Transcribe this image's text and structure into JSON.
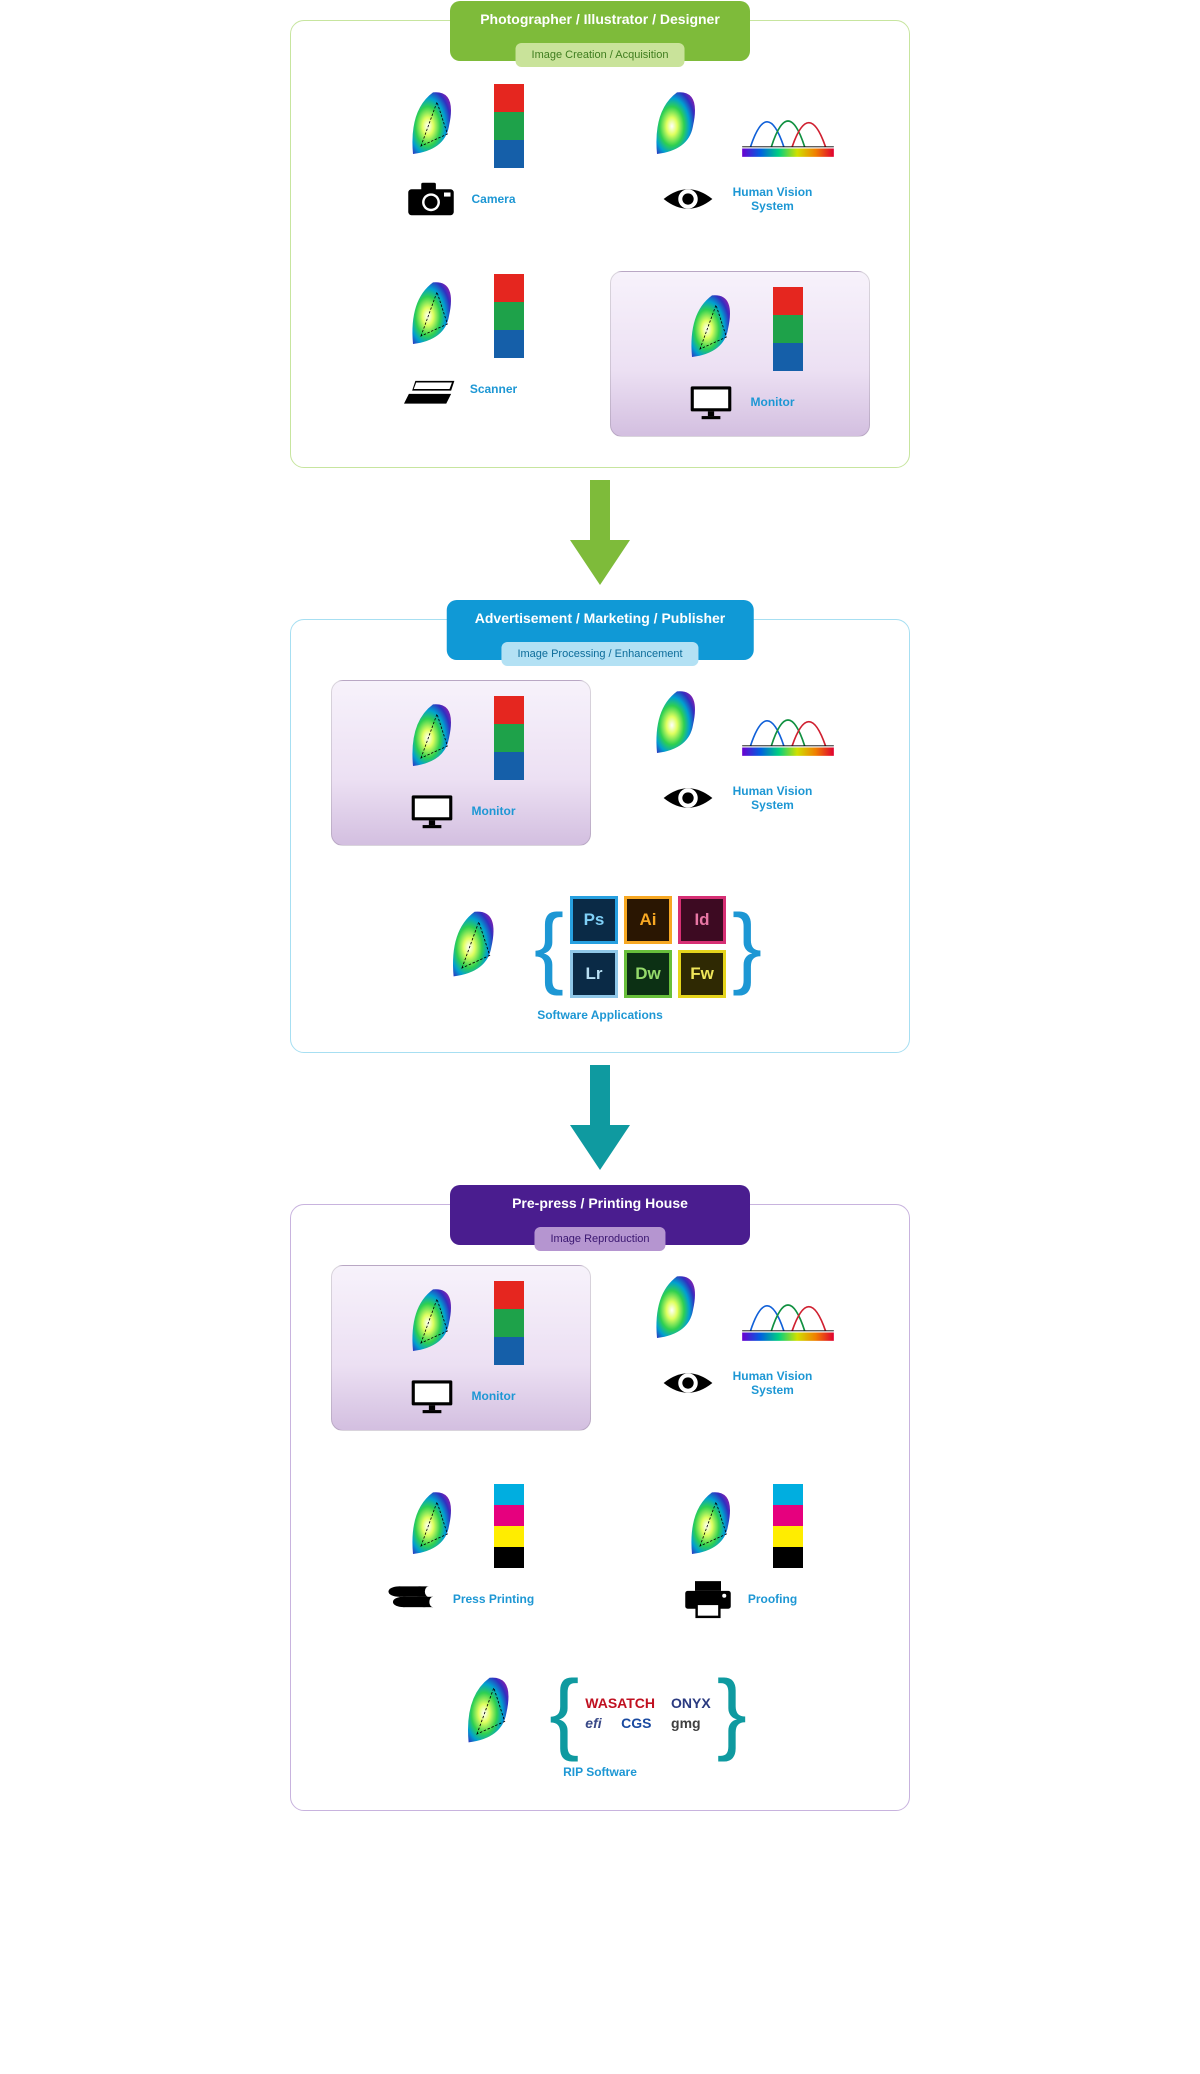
{
  "colors": {
    "rgb": [
      "#e5261f",
      "#1ea24a",
      "#155fa9"
    ],
    "cmyk": [
      "#00aee0",
      "#e6007e",
      "#ffed00",
      "#000000"
    ],
    "label": "#1d97d4",
    "stage1_border": "#c7e59f",
    "stage1_header_bg": "#7ebb3a",
    "stage1_sub_bg": "#c9e39a",
    "stage1_sub_text": "#3f7d1f",
    "arrow1": "#7ebb3a",
    "stage2_border": "#a7dff2",
    "stage2_header_bg": "#1099d6",
    "stage2_sub_bg": "#b3e1f4",
    "stage2_sub_text": "#0c6c9a",
    "arrow2": "#0f9aa0",
    "stage3_border": "#c8b3de",
    "stage3_header_bg": "#4a1d8f",
    "stage3_sub_bg": "#b595d0",
    "stage3_sub_text": "#3a1670",
    "bracket1": "#1d97d4",
    "bracket2": "#0f9aa0"
  },
  "stages": [
    {
      "title": "Photographer / Illustrator / Designer",
      "subtitle": "Image Creation / Acquisition",
      "items": [
        "camera",
        "hvs",
        "scanner",
        "monitor_h"
      ]
    },
    {
      "title": "Advertisement / Marketing / Publisher",
      "subtitle": "Image Processing / Enhancement",
      "items": [
        "monitor_h",
        "hvs",
        "software"
      ]
    },
    {
      "title": "Pre-press / Printing House",
      "subtitle": "Image Reproduction",
      "items": [
        "monitor_h",
        "hvs",
        "press",
        "proof",
        "rip"
      ]
    }
  ],
  "labels": {
    "camera": "Camera",
    "hvs": "Human Vision System",
    "scanner": "Scanner",
    "monitor": "Monitor",
    "press": "Press Printing",
    "proof": "Proofing",
    "software": "Software Applications",
    "rip": "RIP Software"
  },
  "software_cells": [
    {
      "txt": "Ps",
      "bg": "#0a2a46",
      "border": "#27a0e0",
      "fg": "#7fd0f7"
    },
    {
      "txt": "Ai",
      "bg": "#2a1602",
      "border": "#f7a823",
      "fg": "#f7a823"
    },
    {
      "txt": "Id",
      "bg": "#3d0a22",
      "border": "#d62f74",
      "fg": "#e876a4"
    },
    {
      "txt": "Lr",
      "bg": "#0a2a46",
      "border": "#8fc7e8",
      "fg": "#b8dff3"
    },
    {
      "txt": "Dw",
      "bg": "#0c3014",
      "border": "#68bf3b",
      "fg": "#94da6a"
    },
    {
      "txt": "Fw",
      "bg": "#2f2903",
      "border": "#e5d41c",
      "fg": "#f0e65a"
    }
  ],
  "rip_brands": [
    "WASATCH",
    "ONYX",
    "efi",
    "CGS",
    "gmg"
  ]
}
